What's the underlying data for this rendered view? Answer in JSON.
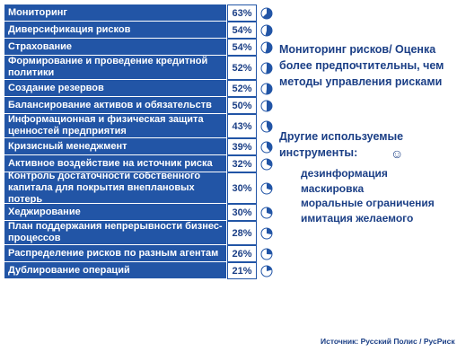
{
  "rows": [
    {
      "label": "Мониторинг",
      "value": 63
    },
    {
      "label": "Диверсификация рисков",
      "value": 54
    },
    {
      "label": "Страхование",
      "value": 54
    },
    {
      "label": "Формирование и проведение кредитной политики",
      "value": 52
    },
    {
      "label": "Создание резервов",
      "value": 52
    },
    {
      "label": "Балансирование активов и обязательств",
      "value": 50
    },
    {
      "label": "Информационная и физическая защита ценностей предприятия",
      "value": 43
    },
    {
      "label": "Кризисный менеджмент",
      "value": 39
    },
    {
      "label": "Активное воздействие на источник риска",
      "value": 32
    },
    {
      "label": "Контроль достаточности собственного капитала для покрытия внеплановых потерь",
      "value": 30
    },
    {
      "label": "Хеджирование",
      "value": 30
    },
    {
      "label": "План поддержания непрерывности бизнес-процессов",
      "value": 28
    },
    {
      "label": "Распределение рисков по разным агентам",
      "value": 26
    },
    {
      "label": "Дублирование операций",
      "value": 21
    }
  ],
  "pct_suffix": "%",
  "heading1": "Мониторинг рисков/ Оценка более предпочтительны, чем методы управления рисками",
  "heading2": "Другие используемые инструменты:",
  "smiley": "☺",
  "tools": [
    "дезинформация",
    "маскировка",
    "моральные ограничения",
    "имитация желаемого"
  ],
  "source": "Источник: Русский Полис / РусРиск",
  "colors": {
    "row_fill": "#2255a6",
    "text_blue": "#1b3f86",
    "pie_fill": "#2255a6"
  }
}
